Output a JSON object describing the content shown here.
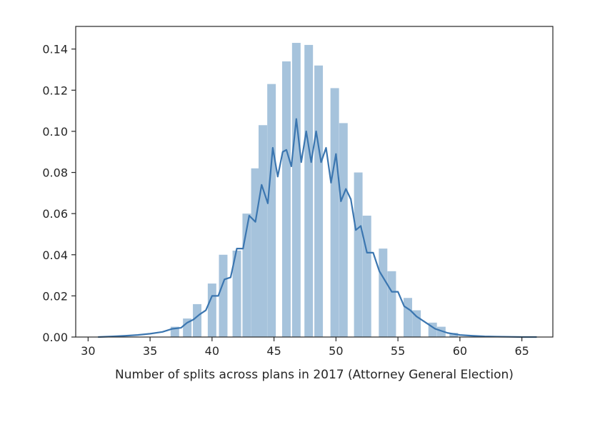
{
  "chart_data": {
    "type": "bar",
    "title": "",
    "xlabel": "Number of splits across plans in 2017 (Attorney General Election)",
    "ylabel": "",
    "xlim": [
      29,
      67.5
    ],
    "ylim": [
      0,
      0.151
    ],
    "xticks": [
      30,
      35,
      40,
      45,
      50,
      55,
      60,
      65
    ],
    "yticks": [
      0.0,
      0.02,
      0.04,
      0.06,
      0.08,
      0.1,
      0.12,
      0.14
    ],
    "grid": false,
    "legend": "none",
    "bar_color": "#a6c3dc",
    "line_color": "#3b76b0",
    "histogram": {
      "bin_width": 0.69,
      "bars": [
        {
          "x": 37.0,
          "value": 0.005
        },
        {
          "x": 38.0,
          "value": 0.009
        },
        {
          "x": 38.8,
          "value": 0.016
        },
        {
          "x": 40.0,
          "value": 0.026
        },
        {
          "x": 40.9,
          "value": 0.04
        },
        {
          "x": 42.0,
          "value": 0.042
        },
        {
          "x": 42.8,
          "value": 0.06
        },
        {
          "x": 43.5,
          "value": 0.082
        },
        {
          "x": 44.1,
          "value": 0.103
        },
        {
          "x": 44.8,
          "value": 0.123
        },
        {
          "x": 46.0,
          "value": 0.134
        },
        {
          "x": 46.8,
          "value": 0.143
        },
        {
          "x": 47.8,
          "value": 0.142
        },
        {
          "x": 48.6,
          "value": 0.132
        },
        {
          "x": 49.9,
          "value": 0.121
        },
        {
          "x": 50.6,
          "value": 0.104
        },
        {
          "x": 51.8,
          "value": 0.08
        },
        {
          "x": 52.5,
          "value": 0.059
        },
        {
          "x": 53.8,
          "value": 0.043
        },
        {
          "x": 54.5,
          "value": 0.032
        },
        {
          "x": 55.8,
          "value": 0.019
        },
        {
          "x": 56.5,
          "value": 0.013
        },
        {
          "x": 57.8,
          "value": 0.007
        },
        {
          "x": 58.5,
          "value": 0.005
        },
        {
          "x": 59.5,
          "value": 0.002
        }
      ]
    },
    "kde": {
      "x": [
        30.8,
        32,
        33,
        34,
        35,
        36,
        36.8,
        37.5,
        38,
        38.5,
        39,
        39.5,
        40,
        40.5,
        41,
        41.5,
        42,
        42.5,
        43,
        43.5,
        44,
        44.5,
        44.9,
        45.3,
        45.7,
        46,
        46.4,
        46.8,
        47.2,
        47.6,
        48,
        48.4,
        48.8,
        49.2,
        49.6,
        50,
        50.4,
        50.8,
        51.2,
        51.6,
        52,
        52.5,
        53,
        53.5,
        54,
        54.5,
        55,
        55.5,
        56,
        56.5,
        57,
        57.5,
        58,
        58.5,
        59,
        60,
        61,
        62,
        63,
        64,
        65,
        66.2
      ],
      "y": [
        0.0,
        0.0003,
        0.0006,
        0.001,
        0.0016,
        0.0025,
        0.004,
        0.0045,
        0.007,
        0.0085,
        0.011,
        0.013,
        0.02,
        0.02,
        0.028,
        0.029,
        0.043,
        0.043,
        0.059,
        0.056,
        0.074,
        0.065,
        0.092,
        0.078,
        0.09,
        0.091,
        0.083,
        0.106,
        0.085,
        0.1,
        0.085,
        0.1,
        0.085,
        0.092,
        0.075,
        0.089,
        0.066,
        0.072,
        0.067,
        0.052,
        0.054,
        0.041,
        0.041,
        0.032,
        0.027,
        0.022,
        0.022,
        0.015,
        0.013,
        0.01,
        0.008,
        0.006,
        0.004,
        0.003,
        0.002,
        0.001,
        0.0006,
        0.0003,
        0.0002,
        0.0001,
        0.0,
        0.0
      ]
    }
  }
}
